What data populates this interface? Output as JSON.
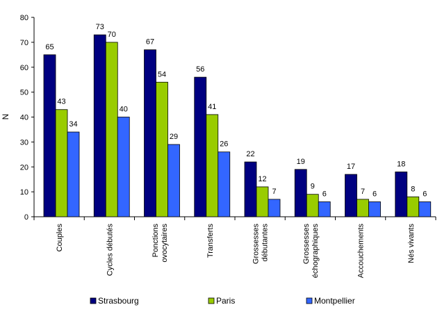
{
  "chart_data": {
    "type": "bar",
    "title": "",
    "xlabel": "",
    "ylabel": "N",
    "ylim": [
      0,
      80
    ],
    "yticks": [
      0,
      10,
      20,
      30,
      40,
      50,
      60,
      70,
      80
    ],
    "grid": false,
    "legend_position": "bottom",
    "categories": [
      [
        "Couples"
      ],
      [
        "Cycles débutés"
      ],
      [
        "Ponctions",
        "ovocytaires"
      ],
      [
        "Transferts"
      ],
      [
        "Grossesses",
        "débutantes"
      ],
      [
        "Grossesses",
        "échographiques"
      ],
      [
        "Accouchements"
      ],
      [
        "Nés vivants"
      ]
    ],
    "series": [
      {
        "name": "Strasbourg",
        "color": "#000080",
        "values": [
          65,
          73,
          67,
          56,
          22,
          19,
          17,
          18
        ]
      },
      {
        "name": "Paris",
        "color": "#99CC00",
        "values": [
          43,
          70,
          54,
          41,
          12,
          9,
          7,
          8
        ]
      },
      {
        "name": "Montpellier",
        "color": "#3366FF",
        "values": [
          34,
          40,
          29,
          26,
          7,
          6,
          6,
          6
        ]
      }
    ]
  }
}
